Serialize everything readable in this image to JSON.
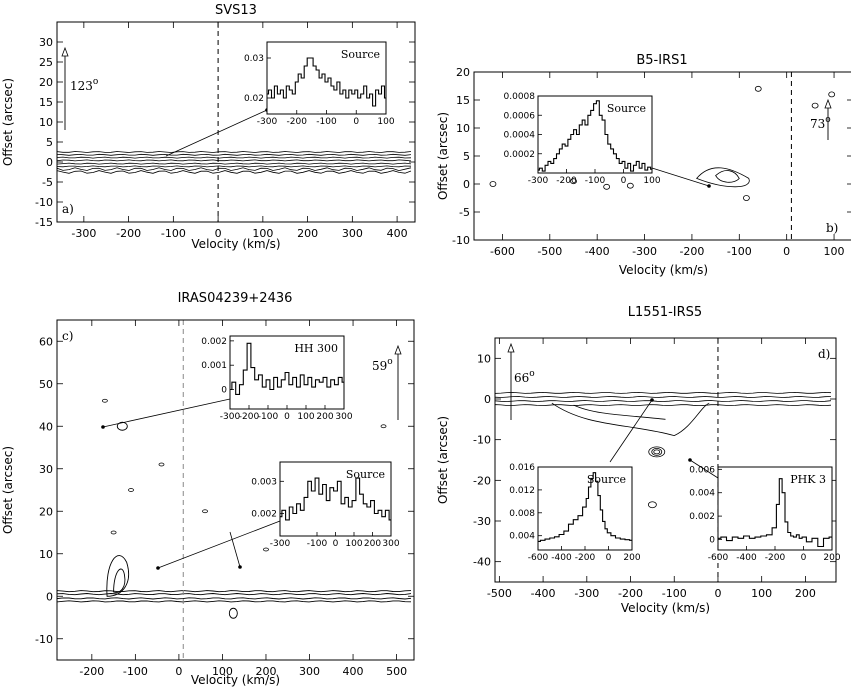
{
  "chart_data": [
    {
      "id": "a",
      "type": "contour",
      "title": "SVS13",
      "xlabel": "Velocity (km/s)",
      "ylabel": "Offset (arcsec)",
      "xlim": [
        -360,
        440
      ],
      "ylim": [
        -15,
        35
      ],
      "xticks": [
        -300,
        -200,
        -100,
        0,
        100,
        200,
        300,
        400
      ],
      "yticks": [
        -15,
        -10,
        -5,
        0,
        5,
        10,
        15,
        20,
        25,
        30
      ],
      "panel_label": "a)",
      "pa_label": "123",
      "pa_sup": "o",
      "inset": {
        "label": "Source",
        "xlim": [
          -300,
          100
        ],
        "ylim": [
          0.016,
          0.034
        ],
        "xticks": [
          -300,
          -200,
          -100,
          0,
          100
        ],
        "yticks": [
          0.02,
          0.03
        ],
        "ytick_labels": [
          "0.02",
          "0.03"
        ],
        "x": [
          -300,
          -290,
          -280,
          -270,
          -260,
          -250,
          -240,
          -230,
          -220,
          -210,
          -200,
          -190,
          -180,
          -170,
          -160,
          -150,
          -140,
          -130,
          -120,
          -110,
          -100,
          -90,
          -80,
          -70,
          -60,
          -50,
          -40,
          -30,
          -20,
          -10,
          0,
          10,
          20,
          30,
          40,
          50,
          60,
          70,
          80,
          90,
          100
        ],
        "y": [
          0.021,
          0.022,
          0.02,
          0.023,
          0.021,
          0.022,
          0.02,
          0.023,
          0.022,
          0.021,
          0.024,
          0.026,
          0.025,
          0.028,
          0.03,
          0.03,
          0.028,
          0.027,
          0.025,
          0.026,
          0.024,
          0.025,
          0.023,
          0.022,
          0.024,
          0.021,
          0.022,
          0.02,
          0.022,
          0.021,
          0.022,
          0.02,
          0.021,
          0.023,
          0.02,
          0.021,
          0.018,
          0.022,
          0.021,
          0.023,
          0.02
        ]
      }
    },
    {
      "id": "b",
      "type": "contour",
      "title": "B5-IRS1",
      "xlabel": "Velocity (km/s)",
      "ylabel": "Offset (arcsec)",
      "xlim": [
        -660,
        140
      ],
      "ylim": [
        -10,
        20
      ],
      "xticks": [
        -600,
        -500,
        -400,
        -300,
        -200,
        -100,
        0,
        100
      ],
      "yticks": [
        -10,
        -5,
        0,
        5,
        10,
        15,
        20
      ],
      "panel_label": "b)",
      "pa_label": "73",
      "pa_sup": "o",
      "inset": {
        "label": "Source",
        "xlim": [
          -300,
          100
        ],
        "ylim": [
          0,
          0.0008
        ],
        "xticks": [
          -300,
          -200,
          -100,
          0,
          100
        ],
        "yticks": [
          0.0002,
          0.0004,
          0.0006,
          0.0008
        ],
        "ytick_labels": [
          "0.0002",
          "0.0004",
          "0.0006",
          "0.0008"
        ],
        "x": [
          -300,
          -290,
          -280,
          -270,
          -260,
          -250,
          -240,
          -230,
          -220,
          -210,
          -200,
          -190,
          -180,
          -170,
          -160,
          -150,
          -140,
          -130,
          -120,
          -110,
          -100,
          -90,
          -80,
          -70,
          -60,
          -50,
          -40,
          -30,
          -20,
          -10,
          0,
          10,
          20,
          30,
          40,
          50,
          60,
          70,
          80,
          90,
          100
        ],
        "y": [
          3e-05,
          5e-05,
          2e-05,
          8e-05,
          0.00012,
          0.0001,
          0.00015,
          0.0002,
          0.00025,
          0.0003,
          0.00028,
          0.00035,
          0.0004,
          0.00045,
          0.0004,
          0.0005,
          0.00055,
          0.0005,
          0.0006,
          0.00065,
          0.00072,
          0.00075,
          0.0006,
          0.00055,
          0.0004,
          0.0003,
          0.00025,
          0.0002,
          0.00015,
          0.0001,
          0.00012,
          5e-05,
          0.0001,
          2e-05,
          8e-05,
          0.00012,
          5e-05,
          0.0001,
          3e-05,
          6e-05,
          4e-05
        ]
      }
    },
    {
      "id": "c",
      "type": "contour",
      "title": "IRAS04239+2436",
      "xlabel": "Velocity (km/s)",
      "ylabel": "Offset (arcsec)",
      "xlim": [
        -280,
        540
      ],
      "ylim": [
        -15,
        65
      ],
      "xticks": [
        -200,
        -100,
        0,
        100,
        200,
        300,
        400,
        500
      ],
      "yticks": [
        -10,
        0,
        10,
        20,
        30,
        40,
        50,
        60
      ],
      "panel_label": "c)",
      "pa_label": "59",
      "pa_sup": "o",
      "insets": [
        {
          "label": "HH 300",
          "xlim": [
            -300,
            300
          ],
          "ylim": [
            -0.0008,
            0.0022
          ],
          "xticks": [
            -300,
            -200,
            -100,
            0,
            100,
            200,
            300
          ],
          "yticks": [
            0,
            0.001,
            0.002
          ],
          "ytick_labels": [
            "0",
            "0.001",
            "0.002"
          ],
          "x": [
            -300,
            -280,
            -260,
            -240,
            -220,
            -200,
            -180,
            -160,
            -140,
            -120,
            -100,
            -80,
            -60,
            -40,
            -20,
            0,
            20,
            40,
            60,
            80,
            100,
            120,
            140,
            160,
            180,
            200,
            220,
            240,
            260,
            280,
            300
          ],
          "y": [
            0,
            0.0003,
            -0.0002,
            0.0002,
            0.0008,
            0.0019,
            0.0009,
            0.0004,
            0.0006,
            0.0001,
            0.0004,
            0,
            0.0005,
            0.0001,
            0.0004,
            0.0007,
            0.0002,
            0.0005,
            0.0001,
            0.0006,
            0.0002,
            0.0005,
            0.0001,
            0.0004,
            0.0003,
            0.0005,
            0.0001,
            0.0004,
            0.0002,
            0.0005,
            0.0003
          ]
        },
        {
          "label": "Source",
          "xlim": [
            -300,
            300
          ],
          "ylim": [
            0.0013,
            0.0036
          ],
          "xticks": [
            -300,
            -100,
            0,
            100,
            200,
            300
          ],
          "yticks": [
            0.002,
            0.003
          ],
          "ytick_labels": [
            "0.002",
            "0.003"
          ],
          "x": [
            -300,
            -280,
            -260,
            -240,
            -220,
            -200,
            -180,
            -160,
            -140,
            -120,
            -100,
            -80,
            -60,
            -40,
            -20,
            0,
            20,
            40,
            60,
            80,
            100,
            120,
            140,
            160,
            180,
            200,
            220,
            240,
            260,
            280,
            300
          ],
          "y": [
            0.0019,
            0.0021,
            0.0018,
            0.0022,
            0.002,
            0.0023,
            0.0021,
            0.0025,
            0.003,
            0.0027,
            0.0031,
            0.0026,
            0.0029,
            0.0024,
            0.0028,
            0.0027,
            0.003,
            0.0023,
            0.0025,
            0.0022,
            0.0024,
            0.0031,
            0.0026,
            0.0023,
            0.0022,
            0.0024,
            0.002,
            0.0021,
            0.0019,
            0.0021,
            0.0018
          ]
        }
      ]
    },
    {
      "id": "d",
      "type": "contour",
      "title": "L1551-IRS5",
      "xlabel": "Velocity (km/s)",
      "ylabel": "Offset (arcsec)",
      "xlim": [
        -510,
        270
      ],
      "ylim": [
        -45,
        15
      ],
      "xticks": [
        -500,
        -400,
        -300,
        -200,
        -100,
        0,
        100,
        200
      ],
      "yticks": [
        -40,
        -30,
        -20,
        -10,
        0,
        10
      ],
      "panel_label": "d)",
      "pa_label": "66",
      "pa_sup": "o",
      "insets": [
        {
          "label": "Source",
          "xlim": [
            -600,
            200
          ],
          "ylim": [
            0.0015,
            0.016
          ],
          "xticks": [
            -600,
            -400,
            -200,
            0,
            200
          ],
          "yticks": [
            0.004,
            0.008,
            0.012,
            0.016
          ],
          "ytick_labels": [
            "0.004",
            "0.008",
            "0.012",
            "0.016"
          ],
          "x": [
            -600,
            -560,
            -520,
            -480,
            -440,
            -400,
            -360,
            -320,
            -280,
            -240,
            -200,
            -180,
            -160,
            -140,
            -120,
            -100,
            -80,
            -60,
            -40,
            -20,
            0,
            40,
            80,
            120,
            160,
            200
          ],
          "y": [
            0.003,
            0.0032,
            0.0034,
            0.0036,
            0.0038,
            0.0042,
            0.0048,
            0.006,
            0.0068,
            0.0075,
            0.009,
            0.0105,
            0.0125,
            0.014,
            0.015,
            0.0135,
            0.011,
            0.0085,
            0.0065,
            0.0052,
            0.0045,
            0.004,
            0.0036,
            0.0034,
            0.0033,
            0.0032
          ]
        },
        {
          "label": "PHK 3",
          "xlim": [
            -600,
            200
          ],
          "ylim": [
            -0.0009,
            0.0062
          ],
          "xticks": [
            -600,
            -400,
            -200,
            0,
            200
          ],
          "yticks": [
            0,
            0.002,
            0.004,
            0.006
          ],
          "ytick_labels": [
            "0",
            "0.002",
            "0.004",
            "0.006"
          ],
          "x": [
            -600,
            -560,
            -520,
            -480,
            -440,
            -400,
            -360,
            -320,
            -280,
            -240,
            -200,
            -180,
            -160,
            -140,
            -120,
            -100,
            -80,
            -60,
            -40,
            -20,
            0,
            40,
            80,
            120,
            160,
            200
          ],
          "y": [
            0.0001,
            0.0002,
            -0.0001,
            0.0002,
            0.0001,
            0.0003,
            0.0001,
            0.0002,
            0.0003,
            0.0004,
            0.001,
            0.003,
            0.0052,
            0.004,
            0.0015,
            0.0006,
            0.0003,
            0.0002,
            0.0004,
            0.0001,
            0.0002,
            -0.0002,
            0.0001,
            -0.0006,
            0.0001,
            0.0002
          ]
        }
      ]
    }
  ]
}
